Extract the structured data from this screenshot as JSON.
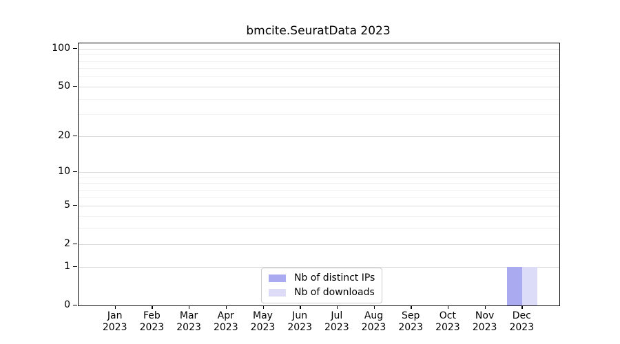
{
  "chart_data": {
    "type": "bar",
    "title": "bmcite.SeuratData 2023",
    "categories": [
      "Jan 2023",
      "Feb 2023",
      "Mar 2023",
      "Apr 2023",
      "May 2023",
      "Jun 2023",
      "Jul 2023",
      "Aug 2023",
      "Sep 2023",
      "Oct 2023",
      "Nov 2023",
      "Dec 2023"
    ],
    "series": [
      {
        "name": "Nb of distinct IPs",
        "color": "#aaaaf0",
        "values": [
          0,
          0,
          0,
          0,
          0,
          0,
          0,
          0,
          0,
          0,
          0,
          1
        ]
      },
      {
        "name": "Nb of downloads",
        "color": "#dcdcf8",
        "values": [
          0,
          0,
          0,
          0,
          0,
          0,
          0,
          0,
          0,
          0,
          0,
          1
        ]
      }
    ],
    "xlabel": "",
    "ylabel": "",
    "yscale": "log1p",
    "ylim": [
      0,
      110
    ],
    "yticks": [
      0,
      1,
      2,
      5,
      10,
      20,
      50,
      100
    ],
    "yticks_minor": [
      3,
      4,
      6,
      7,
      8,
      9,
      30,
      40,
      60,
      70,
      80,
      90
    ],
    "grid": "horizontal",
    "legend_position": "lower center",
    "colors": {
      "major_grid": "#d9d9d9",
      "minor_grid": "#f2f2f2",
      "axis": "#000000",
      "background": "#ffffff"
    }
  }
}
